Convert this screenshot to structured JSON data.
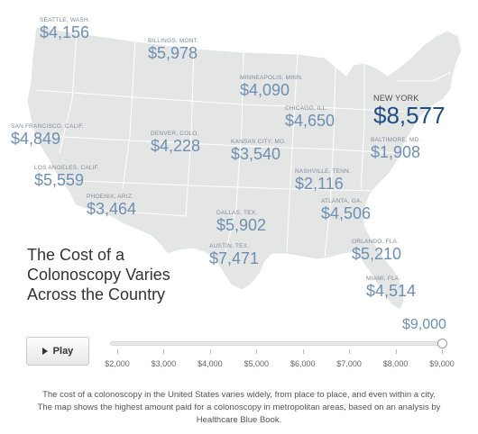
{
  "map": {
    "land_color": "#e4e6e6",
    "border_color": "#ffffff"
  },
  "cities": [
    {
      "id": "seattle",
      "name": "SEATTLE, WASH.",
      "price": "$4,156"
    },
    {
      "id": "billings",
      "name": "BILLINGS, MONT.",
      "price": "$5,978"
    },
    {
      "id": "minneapolis",
      "name": "MINNEAPOLIS, MINN.",
      "price": "$4,090"
    },
    {
      "id": "chicago",
      "name": "CHICAGO, ILL.",
      "price": "$4,650"
    },
    {
      "id": "new-york",
      "name": "NEW YORK",
      "price": "$8,577"
    },
    {
      "id": "san-francisco",
      "name": "SAN FRANCISCO, CALIF.",
      "price": "$4,849"
    },
    {
      "id": "denver",
      "name": "DENVER, COLO.",
      "price": "$4,228"
    },
    {
      "id": "kansas-city",
      "name": "KANSAS CITY, MO.",
      "price": "$3,540"
    },
    {
      "id": "baltimore",
      "name": "BALTIMORE, MD.",
      "price": "$1,908"
    },
    {
      "id": "los-angeles",
      "name": "LOS ANGELES, CALIF.",
      "price": "$5,559"
    },
    {
      "id": "nashville",
      "name": "NASHVILLE, TENN.",
      "price": "$2,116"
    },
    {
      "id": "phoenix",
      "name": "PHOENIX, ARIZ.",
      "price": "$3,464"
    },
    {
      "id": "atlanta",
      "name": "ATLANTA, GA.",
      "price": "$4,506"
    },
    {
      "id": "dallas",
      "name": "DALLAS, TEX.",
      "price": "$5,902"
    },
    {
      "id": "austin",
      "name": "AUSTIN, TEX.",
      "price": "$7,471"
    },
    {
      "id": "orlando",
      "name": "ORLANDO, FLA.",
      "price": "$5,210"
    },
    {
      "id": "miami",
      "name": "MIAMI, FLA.",
      "price": "$4,514"
    }
  ],
  "headline": "The Cost of a Colonoscopy Varies Across the Country",
  "controls": {
    "play_label": "Play",
    "slider_value": "$9,000",
    "slider_min": 2000,
    "slider_max": 9000,
    "slider_current": 9000,
    "ticks": [
      "$2,000",
      "$3,000",
      "$4,000",
      "$5,000",
      "$6,000",
      "$7,000",
      "$8,000",
      "$9,000"
    ]
  },
  "caption": "The cost of a colonoscopy in the United States varies widely, from place to place, and even within a city. The map shows the highest amount paid for a colonoscopy in metropolitan areas, based on an analysis by Healthcare Blue Book."
}
